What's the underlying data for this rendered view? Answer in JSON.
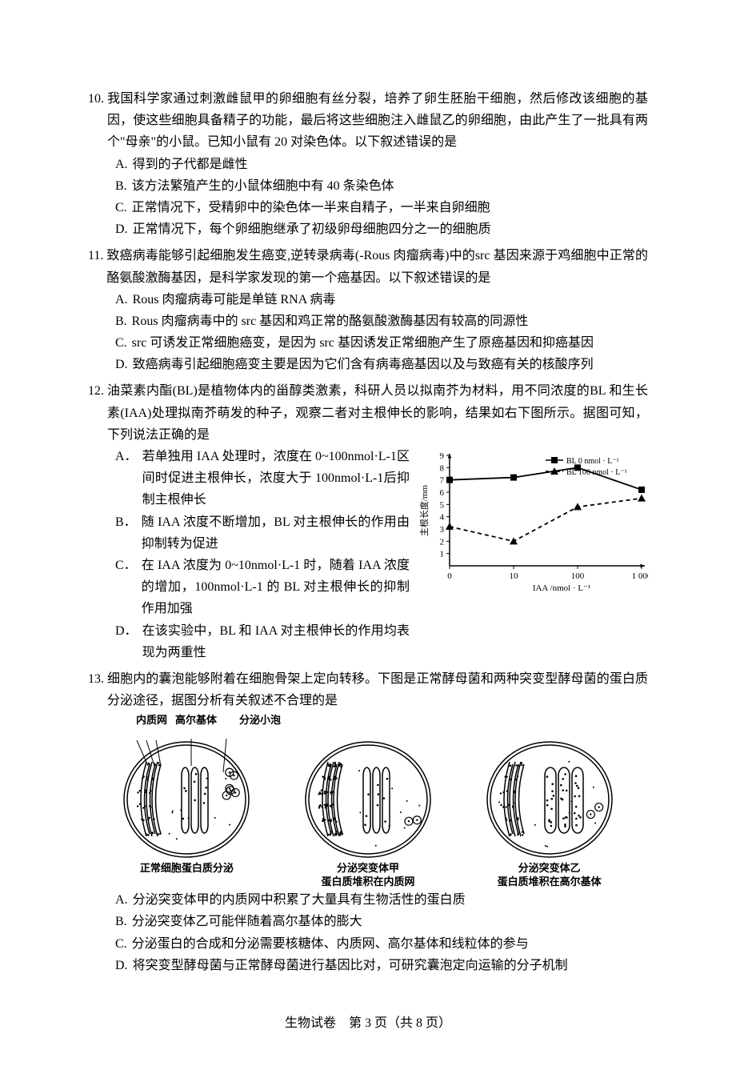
{
  "questions": [
    {
      "number": "10.",
      "stem": "我国科学家通过刺激雌鼠甲的卵细胞有丝分裂，培养了卵生胚胎干细胞，然后修改该细胞的基因，使这些细胞具备精子的功能，最后将这些细胞注入雌鼠乙的卵细胞，由此产生了一批具有两个\"母亲\"的小鼠。已知小鼠有 20 对染色体。以下叙述错误的是",
      "options": [
        {
          "label": "A.",
          "text": "得到的子代都是雌性"
        },
        {
          "label": "B.",
          "text": "该方法繁殖产生的小鼠体细胞中有 40 条染色体"
        },
        {
          "label": "C.",
          "text": "正常情况下，受精卵中的染色体一半来自精子，一半来自卵细胞"
        },
        {
          "label": "D.",
          "text": "正常情况下，每个卵细胞继承了初级卵母细胞四分之一的细胞质"
        }
      ]
    },
    {
      "number": "11.",
      "stem": "致癌病毒能够引起细胞发生癌变,逆转录病毒(-Rous 肉瘤病毒)中的src 基因来源于鸡细胞中正常的酪氨酸激酶基因，是科学家发现的第一个癌基因。以下叙述错误的是",
      "options": [
        {
          "label": "A.",
          "text": "Rous 肉瘤病毒可能是单链 RNA 病毒"
        },
        {
          "label": "B.",
          "text": "Rous 肉瘤病毒中的 src 基因和鸡正常的酪氨酸激酶基因有较高的同源性"
        },
        {
          "label": "C.",
          "text": "src 可诱发正常细胞癌变，是因为 src 基因诱发正常细胞产生了原癌基因和抑癌基因"
        },
        {
          "label": "D.",
          "text": "致癌病毒引起细胞癌变主要是因为它们含有病毒癌基因以及与致癌有关的核酸序列"
        }
      ]
    },
    {
      "number": "12.",
      "stem": "油菜素内酯(BL)是植物体内的甾醇类激素，科研人员以拟南芥为材料，用不同浓度的BL 和生长素(IAA)处理拟南芥萌发的种子，观察二者对主根伸长的影响，结果如右下图所示。据图可知，下列说法正确的是",
      "options": [
        {
          "label": "A．",
          "text": "若单独用 IAA 处理时，浓度在 0~100nmol·L-1区间时促进主根伸长，浓度大于 100nmol·L-1后抑制主根伸长"
        },
        {
          "label": "B．",
          "text": "随 IAA 浓度不断增加，BL 对主根伸长的作用由抑制转为促进"
        },
        {
          "label": "C．",
          "text": "在 IAA 浓度为 0~10nmol·L-1 时，随着 IAA 浓度的增加，100nmol·L-1 的 BL 对主根伸长的抑制作用加强"
        },
        {
          "label": "D．",
          "text": "在该实验中，BL 和 IAA 对主根伸长的作用均表现为两重性"
        }
      ]
    },
    {
      "number": "13.",
      "stem": "细胞内的囊泡能够附着在细胞骨架上定向转移。下图是正常酵母菌和两种突变型酵母菌的蛋白质分泌途径，据图分析有关叙述不合理的是",
      "options": [
        {
          "label": "A.",
          "text": "分泌突变体甲的内质网中积累了大量具有生物活性的蛋白质"
        },
        {
          "label": "B.",
          "text": "分泌突变体乙可能伴随着高尔基体的膨大"
        },
        {
          "label": "C.",
          "text": "分泌蛋白的合成和分泌需要核糖体、内质网、高尔基体和线粒体的参与"
        },
        {
          "label": "D.",
          "text": "将突变型酵母菌与正常酵母菌进行基因比对，可研究囊泡定向运输的分子机制"
        }
      ]
    }
  ],
  "chart": {
    "type": "line",
    "x_categories": [
      "0",
      "10",
      "100",
      "1 000"
    ],
    "xlabel": "IAA /nmol · L⁻¹",
    "ylabel": "主根长度/mm",
    "ylim": [
      0,
      9
    ],
    "ytick_step": 1,
    "series": [
      {
        "name": "BL 0 nmol · L⁻¹",
        "marker": "square",
        "dash": "solid",
        "color": "#000000",
        "values": [
          7.0,
          7.2,
          8.0,
          6.2
        ]
      },
      {
        "name": "BL 100 nmol · L⁻¹",
        "marker": "triangle",
        "dash": "dashed",
        "color": "#000000",
        "values": [
          3.2,
          2.0,
          4.8,
          5.5
        ]
      }
    ],
    "background_color": "#ffffff",
    "axis_color": "#000000",
    "label_fontsize": 11
  },
  "diagrams": {
    "top_labels": {
      "er": "内质网",
      "golgi": "高尔基体",
      "vesicle": "分泌小泡"
    },
    "cells": [
      {
        "caption_line1": "正常细胞蛋白质分泌",
        "caption_line2": ""
      },
      {
        "caption_line1": "分泌突变体甲",
        "caption_line2": "蛋白质堆积在内质网"
      },
      {
        "caption_line1": "分泌突变体乙",
        "caption_line2": "蛋白质堆积在高尔基体"
      }
    ],
    "stroke": "#000000",
    "fill": "#ffffff"
  },
  "footer": "生物试卷　第 3 页（共 8 页）"
}
